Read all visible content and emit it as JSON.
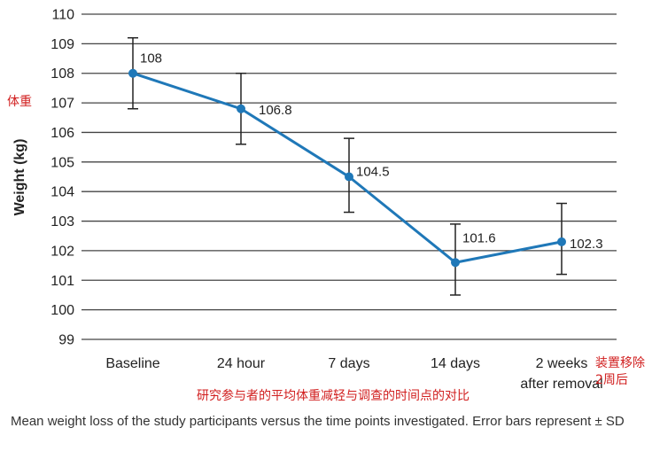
{
  "chart_data": {
    "type": "line",
    "categories": [
      "Baseline",
      "24 hour",
      "7 days",
      "14 days",
      "2 weeks after removal"
    ],
    "category_lines": [
      [
        "Baseline"
      ],
      [
        "24 hour"
      ],
      [
        "7 days"
      ],
      [
        "14 days"
      ],
      [
        "2 weeks",
        "after removal"
      ]
    ],
    "values": [
      108,
      106.8,
      104.5,
      101.6,
      102.3
    ],
    "value_labels": [
      "108",
      "106.8",
      "104.5",
      "101.6",
      "102.3"
    ],
    "error_bars": {
      "upper": [
        109.2,
        108.0,
        105.8,
        102.9,
        103.6
      ],
      "lower": [
        106.8,
        105.6,
        103.3,
        100.5,
        101.2
      ]
    },
    "ylabel": "Weight (kg)",
    "ylim": [
      99,
      110
    ],
    "yticks": [
      "99",
      "100",
      "101",
      "102",
      "103",
      "104",
      "105",
      "106",
      "107",
      "108",
      "109",
      "110"
    ],
    "grid": true,
    "line_color": "#1f78b8",
    "gridline_color": "#444444"
  },
  "annotations": {
    "weight_cn": "体重",
    "removal_cn_line1": "装置移除",
    "removal_cn_line2": "2周后",
    "title_cn": "研究参与者的平均体重减轻与调查的时间点的对比"
  },
  "caption": "Mean weight loss of the study participants versus the time points investigated. Error bars represent ± SD"
}
